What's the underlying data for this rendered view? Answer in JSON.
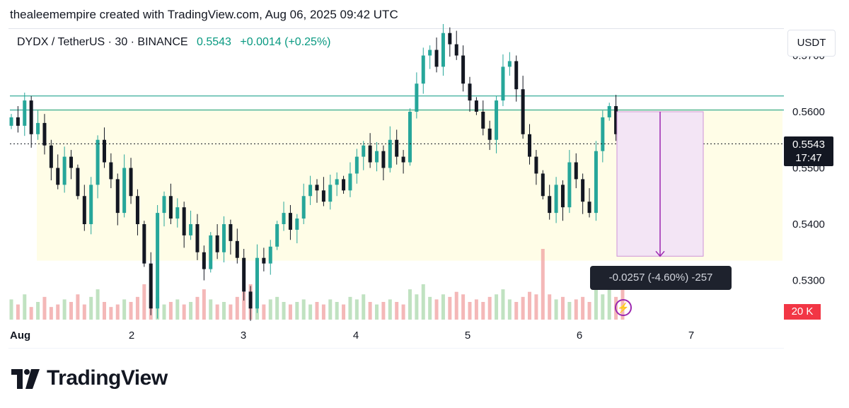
{
  "credit": "thealeemempire created with TradingView.com, Aug 06, 2025 09:42 UTC",
  "symbol": {
    "name": "DYDX / TetherUS · 30 · BINANCE",
    "last": "0.5543",
    "change": "+0.0014 (+0.25%)"
  },
  "unit_button": "USDT",
  "price_tag": {
    "price": "0.5543",
    "countdown": "17:47"
  },
  "volume_tag": "20 K",
  "measure": {
    "label": "-0.0257 (-4.60%) -257",
    "from": 0.56,
    "to": 0.5343
  },
  "brand": "TradingView",
  "colors": {
    "up": "#26a69a",
    "down": "#131722",
    "zone": "#fffde7",
    "level_line": "#089981",
    "measure_fill": "#f3e5f5",
    "measure_line": "#9c27b0"
  },
  "chart_data": {
    "type": "candlestick",
    "y_axis_ticks": [
      "0.5700",
      "0.5600",
      "0.5500",
      "0.5400",
      "0.5300"
    ],
    "x_axis_ticks": [
      "Aug",
      "2",
      "3",
      "4",
      "5",
      "6",
      "7"
    ],
    "ylim": [
      0.5235,
      0.5745
    ],
    "grid": false,
    "support_zone": [
      0.5335,
      0.5605
    ],
    "horizontal_levels": [
      0.5603,
      0.5628
    ],
    "last_price": 0.5543,
    "close_series": [
      0.559,
      0.5575,
      0.562,
      0.556,
      0.558,
      0.554,
      0.55,
      0.547,
      0.552,
      0.55,
      0.545,
      0.54,
      0.547,
      0.555,
      0.551,
      0.548,
      0.542,
      0.55,
      0.545,
      0.54,
      0.533,
      0.525,
      0.542,
      0.545,
      0.541,
      0.543,
      0.538,
      0.54,
      0.535,
      0.532,
      0.538,
      0.535,
      0.54,
      0.537,
      0.534,
      0.528,
      0.525,
      0.534,
      0.533,
      0.536,
      0.54,
      0.542,
      0.539,
      0.541,
      0.545,
      0.547,
      0.546,
      0.544,
      0.547,
      0.548,
      0.546,
      0.549,
      0.552,
      0.554,
      0.551,
      0.553,
      0.55,
      0.555,
      0.552,
      0.551,
      0.56,
      0.565,
      0.57,
      0.571,
      0.568,
      0.574,
      0.572,
      0.57,
      0.565,
      0.562,
      0.56,
      0.557,
      0.555,
      0.562,
      0.568,
      0.569,
      0.564,
      0.556,
      0.552,
      0.549,
      0.545,
      0.542,
      0.547,
      0.543,
      0.551,
      0.548,
      0.544,
      0.542,
      0.553,
      0.559,
      0.561,
      0.556,
      0.5543
    ],
    "volume_series": [
      8,
      6,
      10,
      5,
      7,
      9,
      5,
      6,
      8,
      7,
      10,
      6,
      9,
      12,
      7,
      5,
      6,
      8,
      7,
      9,
      14,
      12,
      9,
      6,
      7,
      8,
      6,
      7,
      9,
      12,
      8,
      6,
      7,
      6,
      9,
      11,
      14,
      7,
      6,
      8,
      9,
      7,
      6,
      7,
      8,
      6,
      7,
      6,
      8,
      7,
      6,
      9,
      8,
      10,
      7,
      6,
      7,
      8,
      7,
      6,
      12,
      10,
      14,
      9,
      8,
      10,
      9,
      11,
      10,
      7,
      8,
      7,
      9,
      10,
      12,
      8,
      7,
      9,
      11,
      10,
      28,
      10,
      8,
      9,
      7,
      8,
      9,
      7,
      12,
      10,
      14,
      9,
      20
    ]
  }
}
